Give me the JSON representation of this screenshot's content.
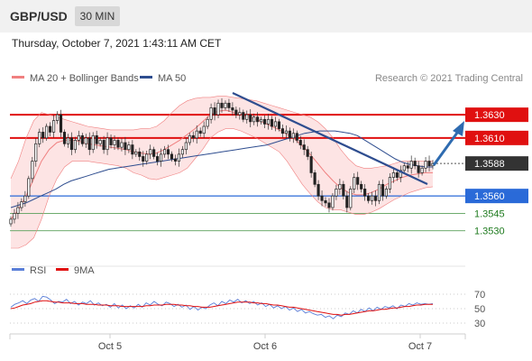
{
  "header": {
    "symbol": "GBP/USD",
    "timeframe": "30 MIN",
    "timestamp": "Thursday, October 7, 2021 1:43:11 AM CET"
  },
  "credit": "Research © 2021 Trading Central",
  "colors": {
    "bollinger": "#f08080",
    "bollinger_fill": "#fde4e4",
    "ma50": "#2e4d8f",
    "resistance": "#e01010",
    "pivot": "#2a6ad8",
    "support": "#5aa05a",
    "support_text": "#1e7a1e",
    "current": "#333333",
    "arrow": "#2e6bb0",
    "rsi": "#5a7fd8",
    "rsi_ma": "#e01010"
  },
  "chart_data": [
    {
      "type": "candlestick",
      "title": "",
      "legend": [
        {
          "name": "MA 20 + Bollinger Bands",
          "color": "#f08080"
        },
        {
          "name": "MA 50",
          "color": "#2e4d8f"
        }
      ],
      "x_ticks": [
        "Oct 5",
        "Oct 6",
        "Oct 7"
      ],
      "ylim": [
        1.3515,
        1.3655
      ],
      "levels": [
        {
          "label": "1.3630",
          "value": 1.363,
          "kind": "resistance"
        },
        {
          "label": "1.3610",
          "value": 1.361,
          "kind": "resistance"
        },
        {
          "label": "1.3588",
          "value": 1.3588,
          "kind": "current"
        },
        {
          "label": "1.3560",
          "value": 1.356,
          "kind": "pivot"
        },
        {
          "label": "1.3545",
          "value": 1.3545,
          "kind": "support"
        },
        {
          "label": "1.3530",
          "value": 1.353,
          "kind": "support"
        }
      ],
      "close": [
        1.354,
        1.3545,
        1.355,
        1.3555,
        1.356,
        1.3575,
        1.359,
        1.3605,
        1.3615,
        1.361,
        1.362,
        1.3615,
        1.3625,
        1.363,
        1.3615,
        1.3605,
        1.361,
        1.36,
        1.3608,
        1.3612,
        1.3605,
        1.361,
        1.36,
        1.3612,
        1.3605,
        1.3608,
        1.36,
        1.361,
        1.3604,
        1.3608,
        1.3602,
        1.3606,
        1.36,
        1.3604,
        1.3596,
        1.3598,
        1.3594,
        1.359,
        1.3596,
        1.36,
        1.3594,
        1.359,
        1.3596,
        1.36,
        1.3596,
        1.3592,
        1.359,
        1.3596,
        1.36,
        1.3606,
        1.3612,
        1.361,
        1.3616,
        1.3614,
        1.362,
        1.3626,
        1.3636,
        1.363,
        1.364,
        1.3636,
        1.364,
        1.3636,
        1.3634,
        1.363,
        1.3632,
        1.3626,
        1.363,
        1.3624,
        1.3628,
        1.3624,
        1.3626,
        1.3622,
        1.3626,
        1.362,
        1.3624,
        1.3618,
        1.3614,
        1.3616,
        1.361,
        1.3614,
        1.3608,
        1.3604,
        1.36,
        1.3594,
        1.358,
        1.357,
        1.356,
        1.3556,
        1.3554,
        1.355,
        1.356,
        1.3566,
        1.357,
        1.356,
        1.355,
        1.3566,
        1.3576,
        1.357,
        1.3566,
        1.356,
        1.3556,
        1.356,
        1.3556,
        1.357,
        1.356,
        1.3566,
        1.3576,
        1.358,
        1.3576,
        1.3582,
        1.3586,
        1.3584,
        1.359,
        1.3586,
        1.358,
        1.3584,
        1.359,
        1.3586,
        1.3588
      ],
      "ma50": [
        1.355,
        1.3552,
        1.3554,
        1.3557,
        1.356,
        1.3563,
        1.3566,
        1.357,
        1.3573,
        1.3575,
        1.3577,
        1.3579,
        1.3581,
        1.3583,
        1.3584,
        1.3585,
        1.3586,
        1.3587,
        1.3588,
        1.3589,
        1.359,
        1.3591,
        1.3592,
        1.3593,
        1.3594,
        1.3595,
        1.3596,
        1.3597,
        1.3598,
        1.3599,
        1.36,
        1.3601,
        1.3602,
        1.3603,
        1.3604,
        1.3606,
        1.3608,
        1.361,
        1.3612,
        1.3614,
        1.3615,
        1.3616,
        1.3616,
        1.3616,
        1.3615,
        1.3614,
        1.3612,
        1.3608,
        1.3604,
        1.36,
        1.3596,
        1.3592,
        1.3589,
        1.3587,
        1.3586,
        1.3585,
        1.3585
      ],
      "bb_mid": [
        1.354,
        1.3548,
        1.356,
        1.3575,
        1.359,
        1.36,
        1.3606,
        1.3608,
        1.3608,
        1.3607,
        1.3605,
        1.3604,
        1.3603,
        1.3602,
        1.3601,
        1.36,
        1.3598,
        1.3597,
        1.3596,
        1.3597,
        1.36,
        1.3604,
        1.3608,
        1.3613,
        1.3618,
        1.3624,
        1.363,
        1.3633,
        1.3634,
        1.3632,
        1.363,
        1.3628,
        1.3626,
        1.3623,
        1.362,
        1.3617,
        1.3613,
        1.3609,
        1.3603,
        1.3596,
        1.3588,
        1.358,
        1.3573,
        1.3567,
        1.3563,
        1.3561,
        1.3561,
        1.3563,
        1.3566,
        1.357,
        1.3573,
        1.3576,
        1.3578,
        1.3579,
        1.358,
        1.358
      ],
      "bb_upper": [
        1.3575,
        1.359,
        1.361,
        1.3625,
        1.3632,
        1.363,
        1.3628,
        1.3626,
        1.3624,
        1.3622,
        1.362,
        1.3619,
        1.3618,
        1.3617,
        1.3617,
        1.3617,
        1.3617,
        1.3618,
        1.3618,
        1.362,
        1.3625,
        1.3632,
        1.3638,
        1.3642,
        1.3644,
        1.3645,
        1.3645,
        1.3646,
        1.3646,
        1.3645,
        1.3644,
        1.3643,
        1.3642,
        1.364,
        1.3638,
        1.3636,
        1.3634,
        1.3632,
        1.363,
        1.3628,
        1.3624,
        1.3618,
        1.361,
        1.36,
        1.3592,
        1.3586,
        1.3584,
        1.3584,
        1.3585,
        1.3586,
        1.3588,
        1.359,
        1.359,
        1.359,
        1.359,
        1.359
      ],
      "bb_lower": [
        1.3515,
        1.3515,
        1.3518,
        1.3524,
        1.354,
        1.356,
        1.3575,
        1.3585,
        1.359,
        1.359,
        1.359,
        1.3589,
        1.3588,
        1.3587,
        1.3586,
        1.3584,
        1.358,
        1.3578,
        1.3575,
        1.3574,
        1.3576,
        1.3578,
        1.358,
        1.3584,
        1.3592,
        1.36,
        1.361,
        1.3615,
        1.3618,
        1.3618,
        1.3616,
        1.3613,
        1.361,
        1.3606,
        1.3602,
        1.3598,
        1.359,
        1.358,
        1.357,
        1.3562,
        1.3555,
        1.355,
        1.3548,
        1.3548,
        1.3546,
        1.3544,
        1.3544,
        1.3546,
        1.3549,
        1.3553,
        1.3557,
        1.356,
        1.3563,
        1.3565,
        1.3567,
        1.3568
      ]
    },
    {
      "type": "line",
      "title": "",
      "legend": [
        {
          "name": "RSI",
          "color": "#5a7fd8"
        },
        {
          "name": "9MA",
          "color": "#e01010"
        }
      ],
      "ylim": [
        20,
        80
      ],
      "y_ticks": [
        70,
        50,
        30
      ],
      "rsi": [
        52,
        56,
        58,
        61,
        57,
        62,
        64,
        60,
        67,
        66,
        62,
        57,
        60,
        59,
        63,
        57,
        60,
        55,
        59,
        57,
        61,
        55,
        58,
        54,
        56,
        52,
        57,
        51,
        55,
        50,
        54,
        51,
        56,
        52,
        58,
        55,
        60,
        56,
        54,
        59,
        57,
        53,
        56,
        52,
        55,
        49,
        53,
        48,
        52,
        50,
        55,
        58,
        54,
        60,
        57,
        62,
        59,
        63,
        58,
        61,
        57,
        60,
        55,
        58,
        53,
        56,
        51,
        54,
        50,
        53,
        48,
        51,
        46,
        49,
        44,
        46,
        43,
        41,
        42,
        38,
        40,
        36,
        41,
        39,
        44,
        42,
        47,
        44,
        49,
        46,
        51,
        47,
        52,
        49,
        53,
        51,
        54,
        50,
        55,
        53,
        57,
        55,
        58,
        56,
        57,
        56,
        57
      ],
      "rsi_ma": [
        50,
        51,
        53,
        55,
        56,
        57,
        59,
        60,
        61,
        61,
        60,
        59,
        59,
        58,
        58,
        58,
        57,
        57,
        57,
        56,
        56,
        56,
        55,
        55,
        55,
        54,
        54,
        54,
        53,
        53,
        53,
        53,
        53,
        53,
        54,
        54,
        55,
        55,
        55,
        56,
        56,
        56,
        55,
        55,
        54,
        54,
        53,
        53,
        52,
        52,
        52,
        53,
        54,
        55,
        56,
        57,
        58,
        59,
        59,
        59,
        59,
        58,
        58,
        57,
        57,
        56,
        55,
        55,
        54,
        53,
        52,
        52,
        51,
        50,
        49,
        48,
        47,
        46,
        45,
        44,
        43,
        42,
        42,
        41,
        42,
        42,
        43,
        44,
        45,
        46,
        47,
        47,
        48,
        49,
        49,
        50,
        51,
        51,
        52,
        53,
        53,
        54,
        55,
        55,
        56,
        56,
        56
      ]
    }
  ]
}
